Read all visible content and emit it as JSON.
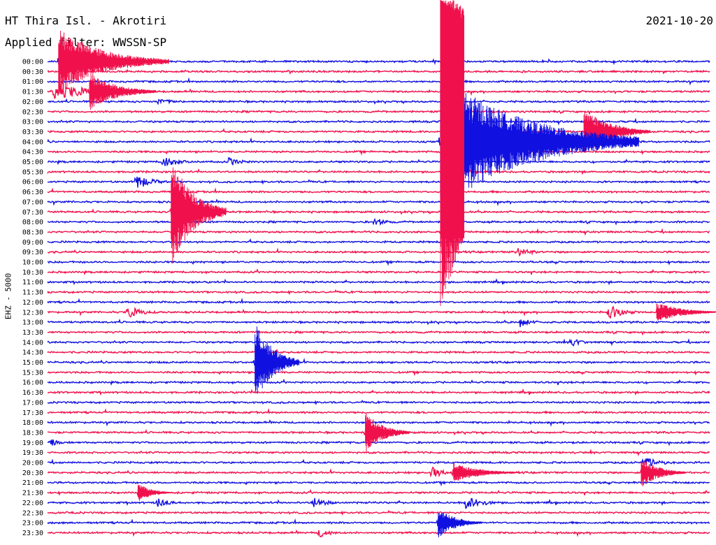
{
  "header": {
    "station": "HT Thira Isl. - Akrotiri",
    "date": "2021-10-20",
    "filter": "Applied filter: WWSSN-SP",
    "channel": "EHZ - 5000"
  },
  "colors": {
    "blue": "#1010e0",
    "red": "#f0104c",
    "text": "#000000"
  },
  "chart_data": {
    "type": "helicorder",
    "ylabel": "EHZ - 5000",
    "row_labels": [
      "00:00",
      "00:30",
      "01:00",
      "01:30",
      "02:00",
      "02:30",
      "03:00",
      "03:30",
      "04:00",
      "04:30",
      "05:00",
      "05:30",
      "06:00",
      "06:30",
      "07:00",
      "07:30",
      "08:00",
      "08:30",
      "09:00",
      "09:30",
      "10:00",
      "10:30",
      "11:00",
      "11:30",
      "12:00",
      "12:30",
      "13:00",
      "13:30",
      "14:00",
      "14:30",
      "15:00",
      "15:30",
      "16:00",
      "16:30",
      "17:00",
      "17:30",
      "18:00",
      "18:30",
      "19:00",
      "19:30",
      "20:00",
      "20:30",
      "21:00",
      "21:30",
      "22:00",
      "22:30",
      "23:00",
      "23:30"
    ],
    "row_colors": [
      "blue",
      "red"
    ],
    "minutes_per_row": 30,
    "events": [
      {
        "row": 0,
        "minute": 0.5,
        "amp": 48,
        "dur": 5,
        "trace": "red"
      },
      {
        "row": 3,
        "minute": 0.2,
        "amp": 12,
        "dur": 6
      },
      {
        "row": 3,
        "minute": 1.9,
        "amp": 28,
        "dur": 3
      },
      {
        "row": 3,
        "minute": 0.4,
        "amp": 8,
        "dur": 4
      },
      {
        "row": 4,
        "minute": 5.0,
        "amp": 4,
        "dur": 3
      },
      {
        "row": 7,
        "minute": 24.3,
        "amp": 35,
        "dur": 3
      },
      {
        "row": 8,
        "minute": 17.8,
        "amp": 100,
        "dur": 9
      },
      {
        "row": 10,
        "minute": 5.2,
        "amp": 10,
        "dur": 2
      },
      {
        "row": 10,
        "minute": 8.2,
        "amp": 6,
        "dur": 2
      },
      {
        "row": 12,
        "minute": 4.0,
        "amp": 12,
        "dur": 2
      },
      {
        "row": 15,
        "minute": 5.6,
        "amp": 80,
        "dur": 2.5
      },
      {
        "row": 16,
        "minute": 14.8,
        "amp": 6,
        "dur": 2
      },
      {
        "row": 19,
        "minute": 21.2,
        "amp": 8,
        "dur": 2
      },
      {
        "row": 25,
        "minute": 3.6,
        "amp": 10,
        "dur": 2
      },
      {
        "row": 25,
        "minute": 25.4,
        "amp": 12,
        "dur": 2
      },
      {
        "row": 25,
        "minute": 27.6,
        "amp": 14,
        "dur": 3
      },
      {
        "row": 26,
        "minute": 21.4,
        "amp": 8,
        "dur": 1.5
      },
      {
        "row": 28,
        "minute": 23.7,
        "amp": 8,
        "dur": 1.5
      },
      {
        "row": 30,
        "minute": 9.4,
        "amp": 60,
        "dur": 2
      },
      {
        "row": 37,
        "minute": 14.4,
        "amp": 30,
        "dur": 2
      },
      {
        "row": 38,
        "minute": 0.1,
        "amp": 8,
        "dur": 1
      },
      {
        "row": 40,
        "minute": 27.0,
        "amp": 8,
        "dur": 2.5
      },
      {
        "row": 41,
        "minute": 18.4,
        "amp": 14,
        "dur": 3
      },
      {
        "row": 41,
        "minute": 26.9,
        "amp": 22,
        "dur": 2
      },
      {
        "row": 41,
        "minute": 17.4,
        "amp": 10,
        "dur": 1.5
      },
      {
        "row": 43,
        "minute": 4.1,
        "amp": 14,
        "dur": 1.5
      },
      {
        "row": 44,
        "minute": 5.0,
        "amp": 8,
        "dur": 1.5
      },
      {
        "row": 44,
        "minute": 12.0,
        "amp": 8,
        "dur": 2
      },
      {
        "row": 44,
        "minute": 18.9,
        "amp": 10,
        "dur": 2.5
      },
      {
        "row": 46,
        "minute": 17.7,
        "amp": 22,
        "dur": 2
      },
      {
        "row": 47,
        "minute": 12.3,
        "amp": 8,
        "dur": 1.5
      }
    ]
  }
}
